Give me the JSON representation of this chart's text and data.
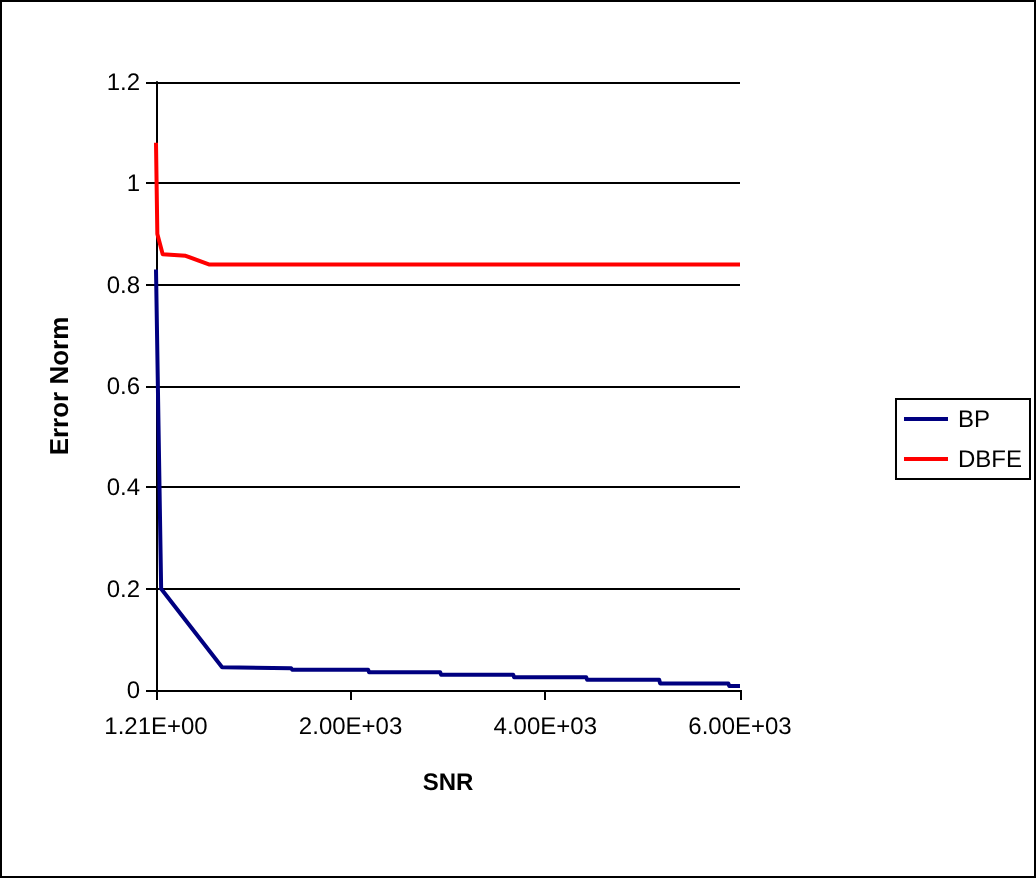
{
  "chart_data": {
    "type": "line",
    "xlabel": "SNR",
    "ylabel": "Error Norm",
    "xlim": [
      1.21,
      6000
    ],
    "xticks": [
      {
        "value": 1.21,
        "label": "1.21E+00"
      },
      {
        "value": 2000,
        "label": "2.00E+03"
      },
      {
        "value": 4000,
        "label": "4.00E+03"
      },
      {
        "value": 6000,
        "label": "6.00E+03"
      }
    ],
    "ylim": [
      0,
      1.2
    ],
    "yticks": [
      0,
      0.2,
      0.4,
      0.6,
      0.8,
      1,
      1.2
    ],
    "grid": "y",
    "legend": "right",
    "marker": "none",
    "series": [
      {
        "name": "BP",
        "color": "#000080",
        "x": [
          1.21,
          54,
          680,
          1390,
          1400,
          2180,
          2190,
          2920,
          2930,
          3670,
          3680,
          4420,
          4430,
          5170,
          5180,
          5880,
          5890,
          6000
        ],
        "values": [
          0.83,
          0.2,
          0.045,
          0.043,
          0.04,
          0.04,
          0.035,
          0.035,
          0.03,
          0.03,
          0.025,
          0.025,
          0.02,
          0.02,
          0.013,
          0.013,
          0.008,
          0.008
        ]
      },
      {
        "name": "DBFE",
        "color": "#ff0000",
        "x": [
          1.21,
          15,
          70,
          306,
          544,
          6000
        ],
        "values": [
          1.08,
          0.9,
          0.86,
          0.857,
          0.84,
          0.84
        ]
      }
    ]
  }
}
